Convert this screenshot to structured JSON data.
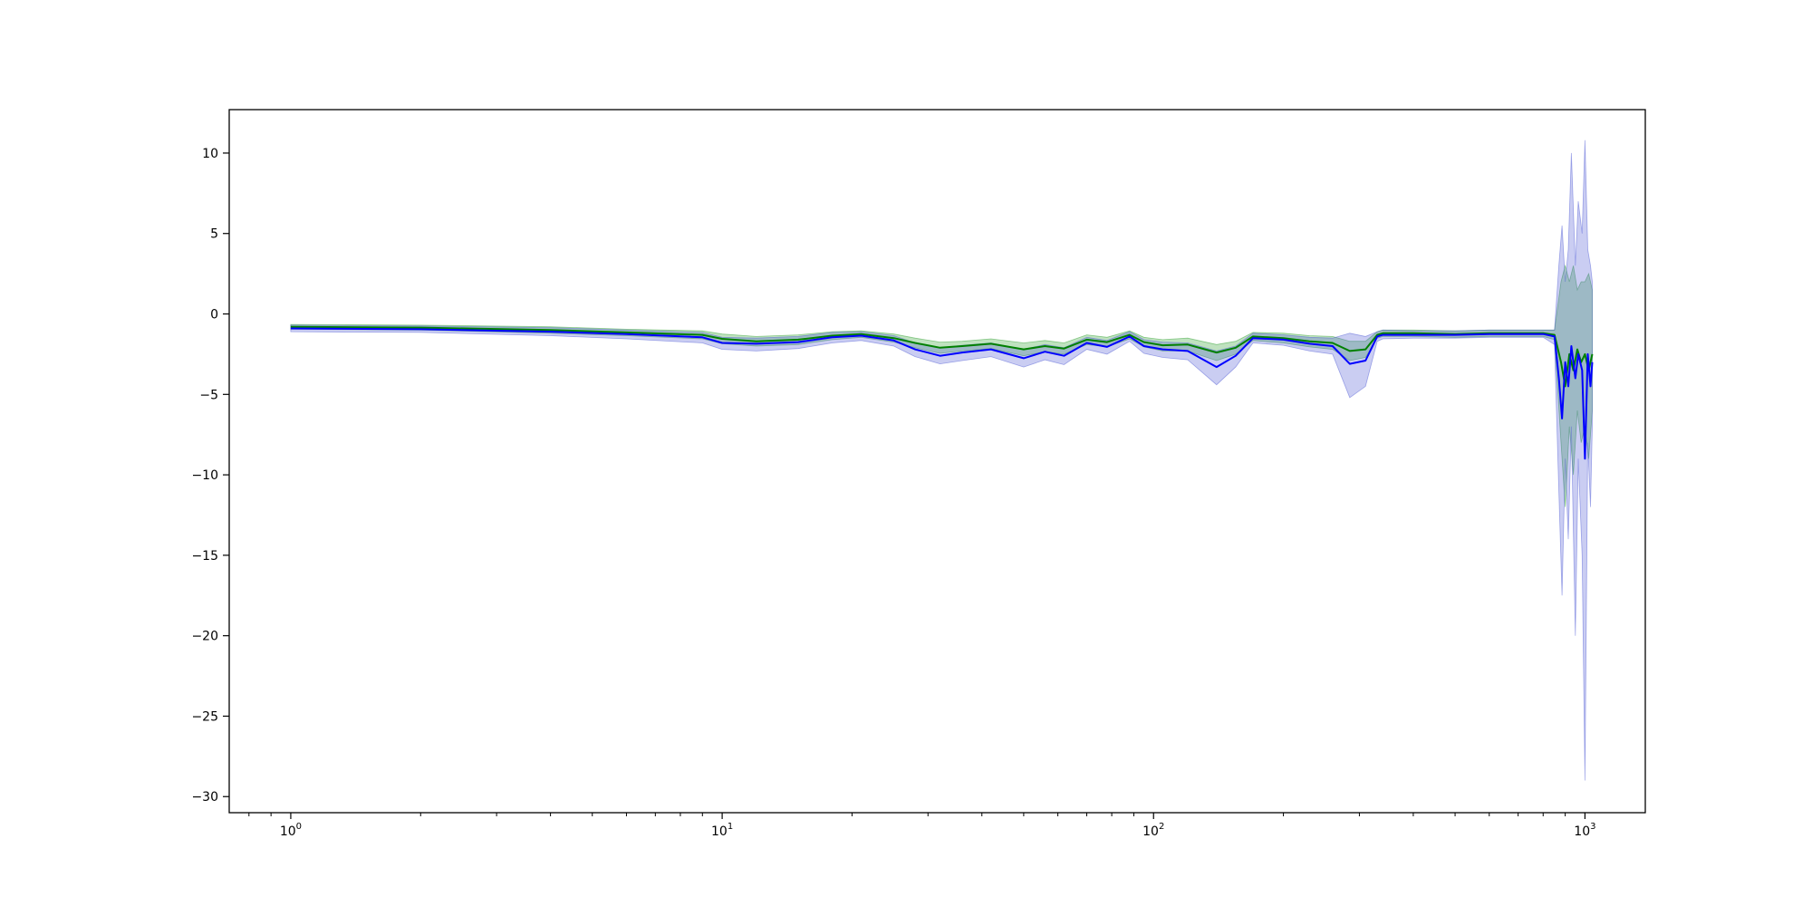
{
  "chart_data": {
    "type": "line",
    "title": "",
    "xlabel": "",
    "ylabel": "",
    "xscale": "log",
    "xlim": [
      0.72,
      1380
    ],
    "ylim": [
      -31,
      12.7
    ],
    "grid": false,
    "legend": "none",
    "x_ticks": [
      {
        "base": "10",
        "exp": "0",
        "value": 1
      },
      {
        "base": "10",
        "exp": "1",
        "value": 10
      },
      {
        "base": "10",
        "exp": "2",
        "value": 100
      },
      {
        "base": "10",
        "exp": "3",
        "value": 1000
      }
    ],
    "y_ticks": [
      {
        "label": "10",
        "value": 10
      },
      {
        "label": "5",
        "value": 5
      },
      {
        "label": "0",
        "value": 0
      },
      {
        "label": "−5",
        "value": -5
      },
      {
        "label": "−10",
        "value": -10
      },
      {
        "label": "−15",
        "value": -15
      },
      {
        "label": "−20",
        "value": -20
      },
      {
        "label": "−25",
        "value": -25
      },
      {
        "label": "−30",
        "value": -30
      }
    ],
    "series": [
      {
        "color": "#008000",
        "band_color": "#2ca02c",
        "x": [
          1,
          2,
          4,
          6,
          9,
          10,
          12,
          15,
          18,
          21,
          25,
          28,
          32,
          36,
          42,
          50,
          56,
          62,
          70,
          78,
          88,
          95,
          105,
          120,
          140,
          155,
          170,
          200,
          230,
          260,
          285,
          310,
          330,
          340,
          400,
          500,
          600,
          700,
          800,
          850,
          880,
          900,
          920,
          940,
          960,
          980,
          1000,
          1020,
          1040
        ],
        "y": [
          -0.8,
          -0.85,
          -1.0,
          -1.15,
          -1.3,
          -1.55,
          -1.7,
          -1.6,
          -1.35,
          -1.25,
          -1.5,
          -1.8,
          -2.1,
          -2.0,
          -1.85,
          -2.2,
          -2.0,
          -2.15,
          -1.6,
          -1.75,
          -1.3,
          -1.75,
          -1.95,
          -1.9,
          -2.4,
          -2.1,
          -1.4,
          -1.5,
          -1.7,
          -1.8,
          -2.3,
          -2.2,
          -1.3,
          -1.2,
          -1.2,
          -1.25,
          -1.2,
          -1.2,
          -1.2,
          -1.3,
          -3.0,
          -4.5,
          -2.5,
          -3.5,
          -2.2,
          -3.0,
          -2.5,
          -3.5,
          -2.5
        ],
        "lower": [
          -0.95,
          -1.0,
          -1.2,
          -1.35,
          -1.55,
          -1.85,
          -2.0,
          -1.9,
          -1.6,
          -1.45,
          -1.75,
          -2.1,
          -2.45,
          -2.3,
          -2.15,
          -2.6,
          -2.35,
          -2.5,
          -1.9,
          -2.05,
          -1.55,
          -2.05,
          -2.3,
          -2.3,
          -2.9,
          -2.5,
          -1.65,
          -1.8,
          -2.05,
          -2.2,
          -2.9,
          -2.7,
          -1.5,
          -1.4,
          -1.4,
          -1.45,
          -1.4,
          -1.4,
          -1.4,
          -1.6,
          -8.0,
          -12.0,
          -7.0,
          -10.0,
          -6.0,
          -8.0,
          -7.0,
          -9.0,
          -6.0
        ],
        "upper": [
          -0.65,
          -0.7,
          -0.8,
          -0.95,
          -1.05,
          -1.25,
          -1.4,
          -1.3,
          -1.1,
          -1.05,
          -1.25,
          -1.5,
          -1.75,
          -1.7,
          -1.55,
          -1.8,
          -1.65,
          -1.8,
          -1.3,
          -1.45,
          -1.05,
          -1.45,
          -1.6,
          -1.5,
          -1.9,
          -1.7,
          -1.15,
          -1.2,
          -1.35,
          -1.4,
          -1.7,
          -1.7,
          -1.1,
          -1.0,
          -1.0,
          -1.05,
          -1.0,
          -1.0,
          -1.0,
          -1.0,
          2.0,
          3.0,
          2.0,
          3.0,
          1.5,
          2.0,
          2.0,
          2.5,
          1.5
        ]
      },
      {
        "color": "#0000ff",
        "band_color": "#4f5bd5",
        "x": [
          1,
          2,
          4,
          6,
          9,
          10,
          12,
          15,
          18,
          21,
          25,
          28,
          32,
          36,
          42,
          50,
          56,
          62,
          70,
          78,
          88,
          95,
          105,
          120,
          140,
          155,
          170,
          200,
          230,
          260,
          285,
          310,
          330,
          340,
          400,
          500,
          600,
          700,
          800,
          850,
          870,
          885,
          900,
          915,
          930,
          950,
          965,
          985,
          1000,
          1015,
          1030,
          1040
        ],
        "y": [
          -0.9,
          -0.95,
          -1.1,
          -1.25,
          -1.45,
          -1.8,
          -1.85,
          -1.75,
          -1.45,
          -1.35,
          -1.65,
          -2.2,
          -2.6,
          -2.4,
          -2.2,
          -2.75,
          -2.35,
          -2.6,
          -1.8,
          -2.05,
          -1.4,
          -2.0,
          -2.2,
          -2.3,
          -3.3,
          -2.6,
          -1.5,
          -1.6,
          -1.85,
          -2.0,
          -3.1,
          -2.9,
          -1.4,
          -1.3,
          -1.3,
          -1.3,
          -1.25,
          -1.25,
          -1.25,
          -1.4,
          -4.0,
          -6.5,
          -3.0,
          -4.5,
          -2.0,
          -4.0,
          -2.5,
          -3.5,
          -9.0,
          -2.5,
          -4.5,
          -3.0
        ],
        "lower": [
          -1.1,
          -1.15,
          -1.35,
          -1.55,
          -1.8,
          -2.2,
          -2.3,
          -2.15,
          -1.8,
          -1.65,
          -2.0,
          -2.65,
          -3.1,
          -2.9,
          -2.65,
          -3.3,
          -2.85,
          -3.15,
          -2.2,
          -2.5,
          -1.7,
          -2.45,
          -2.7,
          -2.85,
          -4.4,
          -3.3,
          -1.8,
          -1.95,
          -2.3,
          -2.5,
          -5.2,
          -4.5,
          -1.7,
          -1.55,
          -1.5,
          -1.5,
          -1.45,
          -1.45,
          -1.45,
          -1.9,
          -11.0,
          -17.5,
          -9.0,
          -14.0,
          -7.0,
          -20.0,
          -9.0,
          -15.0,
          -29.0,
          -8.0,
          -12.0,
          -7.0
        ],
        "upper": [
          -0.7,
          -0.75,
          -0.85,
          -1.0,
          -1.15,
          -1.45,
          -1.5,
          -1.4,
          -1.15,
          -1.1,
          -1.35,
          -1.8,
          -2.1,
          -1.95,
          -1.8,
          -2.2,
          -1.9,
          -2.1,
          -1.45,
          -1.65,
          -1.1,
          -1.6,
          -1.75,
          -1.8,
          -2.3,
          -2.0,
          -1.2,
          -1.3,
          -1.45,
          -1.5,
          -1.2,
          -1.4,
          -1.1,
          -1.0,
          -1.05,
          -1.05,
          -1.0,
          -1.0,
          -1.0,
          -1.0,
          3.0,
          5.5,
          2.0,
          4.0,
          10.0,
          3.0,
          7.0,
          5.0,
          10.8,
          4.0,
          3.0,
          2.0
        ]
      }
    ]
  }
}
